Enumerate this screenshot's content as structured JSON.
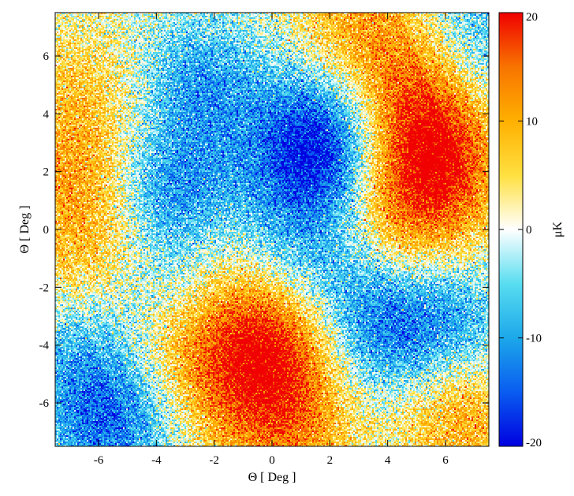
{
  "chart_data": {
    "type": "heatmap",
    "title": "",
    "xlabel": "Θ [ Deg ]",
    "ylabel": "Θ [ Deg ]",
    "xlim": [
      -7.5,
      7.5
    ],
    "ylim": [
      -7.5,
      7.5
    ],
    "xticks": [
      -6,
      -4,
      -2,
      0,
      2,
      4,
      6
    ],
    "yticks": [
      -6,
      -4,
      -2,
      0,
      2,
      4,
      6
    ],
    "colorbar": {
      "label": "μK",
      "range": [
        -20,
        20
      ],
      "ticks": [
        -20,
        -10,
        0,
        10,
        20
      ],
      "colormap": [
        "#0000e0",
        "#0a5cf0",
        "#1ca8ea",
        "#58ddf0",
        "#ffffff",
        "#ffe040",
        "#ffb000",
        "#f87400",
        "#f00000"
      ]
    },
    "blobs": [
      {
        "x": 5.5,
        "y": 2.8,
        "value": 16
      },
      {
        "x": 4.9,
        "y": 5.0,
        "value": 11
      },
      {
        "x": 5.6,
        "y": 1.0,
        "value": 9
      },
      {
        "x": 3.0,
        "y": 7.2,
        "value": 9
      },
      {
        "x": -7.0,
        "y": 2.0,
        "value": 9
      },
      {
        "x": -6.2,
        "y": -0.8,
        "value": 8
      },
      {
        "x": -6.5,
        "y": 5.0,
        "value": 6
      },
      {
        "x": -0.7,
        "y": -3.5,
        "value": 13
      },
      {
        "x": -1.0,
        "y": -5.8,
        "value": 9
      },
      {
        "x": 1.0,
        "y": -4.3,
        "value": 8
      },
      {
        "x": 0.8,
        "y": -7.0,
        "value": 9
      },
      {
        "x": 6.5,
        "y": -6.5,
        "value": 10
      },
      {
        "x": 4.0,
        "y": 0.2,
        "value": 6
      },
      {
        "x": -2.0,
        "y": 0.0,
        "value": 5
      },
      {
        "x": -3.5,
        "y": -4.0,
        "value": 6
      },
      {
        "x": -7.2,
        "y": -6.0,
        "value": 4
      },
      {
        "x": 1.5,
        "y": 2.2,
        "value": -14
      },
      {
        "x": 1.6,
        "y": 3.8,
        "value": -9
      },
      {
        "x": -3.2,
        "y": 1.2,
        "value": -13
      },
      {
        "x": -2.5,
        "y": 5.0,
        "value": -10
      },
      {
        "x": -5.8,
        "y": -6.6,
        "value": -15
      },
      {
        "x": -6.8,
        "y": -4.5,
        "value": -8
      },
      {
        "x": 3.5,
        "y": -3.8,
        "value": -10
      },
      {
        "x": 6.0,
        "y": -3.2,
        "value": -9
      },
      {
        "x": 7.3,
        "y": 6.5,
        "value": -8
      },
      {
        "x": -4.0,
        "y": -2.0,
        "value": -6
      },
      {
        "x": 0.3,
        "y": -0.3,
        "value": -5
      },
      {
        "x": 2.5,
        "y": -1.5,
        "value": -6
      }
    ],
    "noise_sigma_uK": 4.2
  }
}
